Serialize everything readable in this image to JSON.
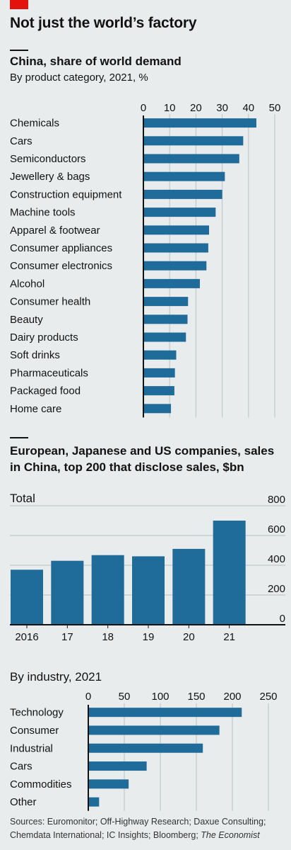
{
  "header": {
    "title": "Not just the world’s factory",
    "accent_color": "#e3120b"
  },
  "chart1": {
    "title": "China, share of world demand",
    "subtitle": "By product category, 2021, %"
  },
  "chart2": {
    "title_line1": "European, Japanese and US companies, sales",
    "title_line2": "in China, top 200 that disclose sales, $bn",
    "panel_total": "Total",
    "panel_industry": "By industry, 2021"
  },
  "source": {
    "text": "Sources: Euromonitor; Off-Highway Research; Daxue Consulting; Chemdata International; IC Insights; Bloomberg; ",
    "italic": "The Economist"
  },
  "colors": {
    "bar": "#1f6b9a",
    "grid": "#b7c1c5",
    "axis": "#121212",
    "background": "#e9ecec"
  },
  "chart_data": [
    {
      "type": "bar",
      "orientation": "horizontal",
      "title": "China, share of world demand",
      "subtitle": "By product category, 2021, %",
      "categories": [
        "Chemicals",
        "Cars",
        "Semiconductors",
        "Jewellery & bags",
        "Construction equipment",
        "Machine tools",
        "Apparel & footwear",
        "Consumer appliances",
        "Consumer electronics",
        "Alcohol",
        "Consumer health",
        "Beauty",
        "Dairy products",
        "Soft drinks",
        "Pharmaceuticals",
        "Packaged food",
        "Home care"
      ],
      "values": [
        43,
        38,
        36.5,
        31,
        30,
        27.5,
        25,
        24.7,
        24,
        21.5,
        17,
        16.8,
        16.2,
        12.5,
        12,
        11.8,
        10.5
      ],
      "xlim": [
        0,
        50
      ],
      "xticks": [
        "0",
        "10",
        "20",
        "30",
        "40",
        "50"
      ],
      "grid": true
    },
    {
      "type": "bar",
      "orientation": "vertical",
      "title": "Total",
      "categories": [
        "2016",
        "17",
        "18",
        "19",
        "20",
        "21"
      ],
      "values": [
        370,
        430,
        468,
        460,
        510,
        700
      ],
      "ylim": [
        0,
        800
      ],
      "yticks": [
        "0",
        "200",
        "400",
        "600",
        "800"
      ],
      "grid": true
    },
    {
      "type": "bar",
      "orientation": "horizontal",
      "title": "By industry, 2021",
      "categories": [
        "Technology",
        "Consumer",
        "Industrial",
        "Cars",
        "Commodities",
        "Other"
      ],
      "values": [
        213,
        182,
        159,
        81,
        56,
        15
      ],
      "xlim": [
        0,
        250
      ],
      "xticks": [
        "0",
        "50",
        "100",
        "150",
        "200",
        "250"
      ],
      "grid": true
    }
  ]
}
